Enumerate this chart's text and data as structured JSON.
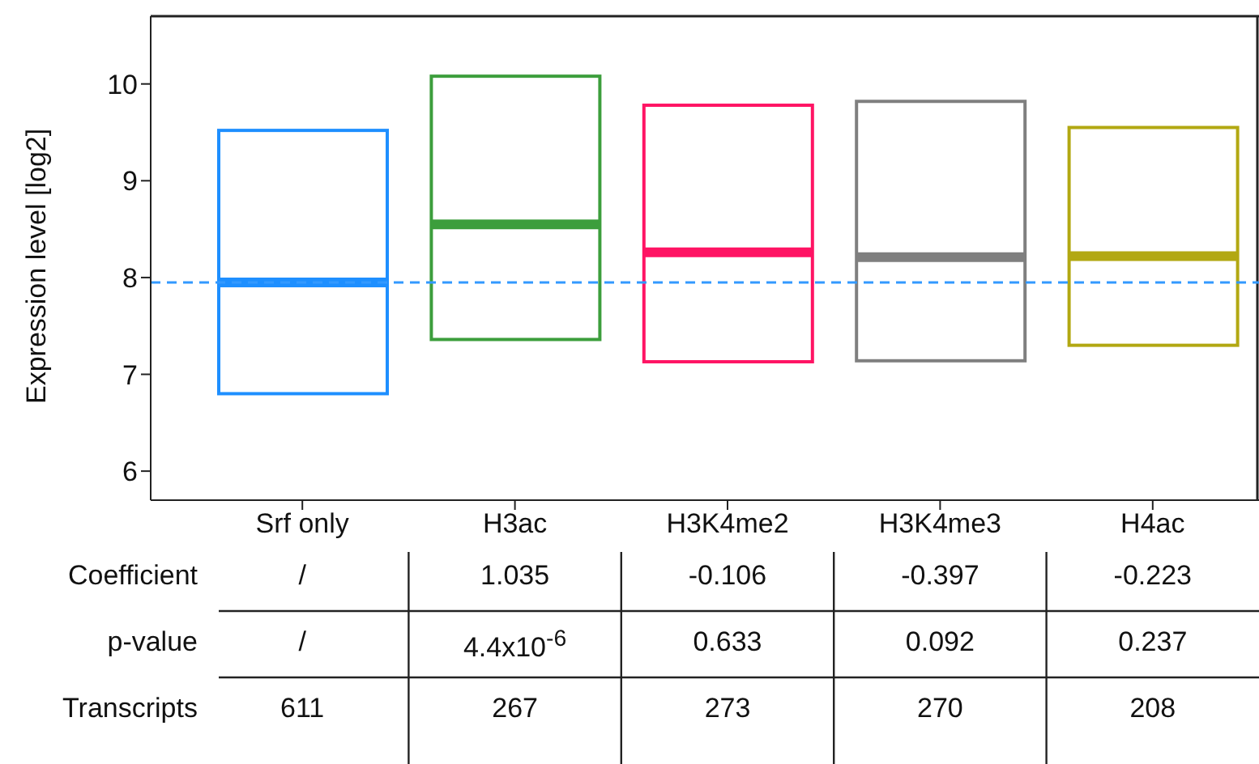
{
  "chart_data": {
    "type": "box",
    "ylabel": "Expression level [log2]",
    "categories": [
      "Srf only",
      "H3ac",
      "H3K4me2",
      "H3K4me3",
      "H4ac"
    ],
    "colors": [
      "#1e8fff",
      "#3c9e3c",
      "#ff1464",
      "#7f7f7f",
      "#b2a812"
    ],
    "boxes": [
      {
        "low": 6.8,
        "q1": 6.8,
        "median": 7.95,
        "q3": 9.52,
        "high": 9.52
      },
      {
        "low": 7.36,
        "q1": 7.36,
        "median": 8.55,
        "q3": 10.08,
        "high": 10.08
      },
      {
        "low": 7.13,
        "q1": 7.13,
        "median": 8.26,
        "q3": 9.78,
        "high": 9.78
      },
      {
        "low": 7.14,
        "q1": 7.14,
        "median": 8.21,
        "q3": 9.82,
        "high": 9.82
      },
      {
        "low": 7.3,
        "q1": 7.3,
        "median": 8.22,
        "q3": 9.55,
        "high": 9.55
      }
    ],
    "ylim": [
      5.7,
      10.7
    ],
    "yticks": [
      6,
      7,
      8,
      9,
      10
    ],
    "ref_lines": [
      {
        "axis": "y",
        "value": 7.95,
        "color": "#3399ff",
        "line_style": "dashed"
      }
    ],
    "annotations": [
      "Coefficient",
      "/",
      "1.035",
      "-0.106",
      "-0.397",
      "-0.223",
      "p-value",
      "/",
      "4.4x10$^{-6}$",
      "0.633",
      "0.092",
      "0.237",
      "Transcripts",
      "611",
      "267",
      "273",
      "270",
      "208"
    ]
  }
}
